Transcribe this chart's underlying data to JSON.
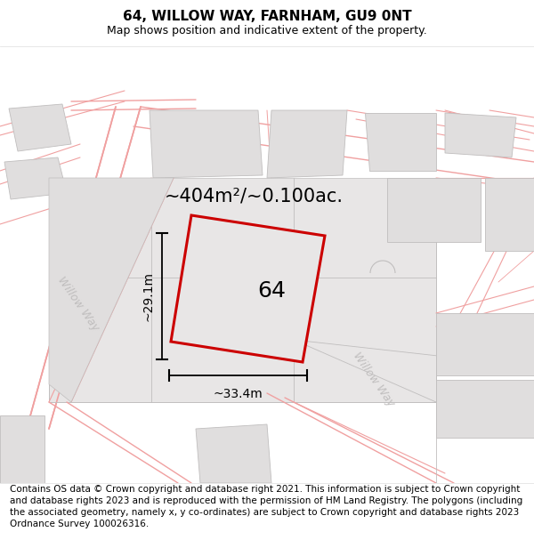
{
  "title": "64, WILLOW WAY, FARNHAM, GU9 0NT",
  "subtitle": "Map shows position and indicative extent of the property.",
  "area_label": "~404m²/~0.100ac.",
  "plot_number": "64",
  "dim_width": "~33.4m",
  "dim_height": "~29.1m",
  "willow_way_label1": "Willow Way",
  "willow_way_label2": "Willow Way",
  "footer": "Contains OS data © Crown copyright and database right 2021. This information is subject to Crown copyright and database rights 2023 and is reproduced with the permission of HM Land Registry. The polygons (including the associated geometry, namely x, y co-ordinates) are subject to Crown copyright and database rights 2023 Ordnance Survey 100026316.",
  "bg_color": "#ffffff",
  "plot_fill": "#e8e6e6",
  "block_fill": "#e0dede",
  "road_color": "#f0a0a0",
  "gray_line": "#c0bebe",
  "highlight_color": "#cc0000",
  "title_fontsize": 11,
  "subtitle_fontsize": 9,
  "area_fontsize": 15,
  "plot_num_fontsize": 18,
  "dim_fontsize": 10,
  "footer_fontsize": 7.5,
  "willow_fontsize": 9
}
